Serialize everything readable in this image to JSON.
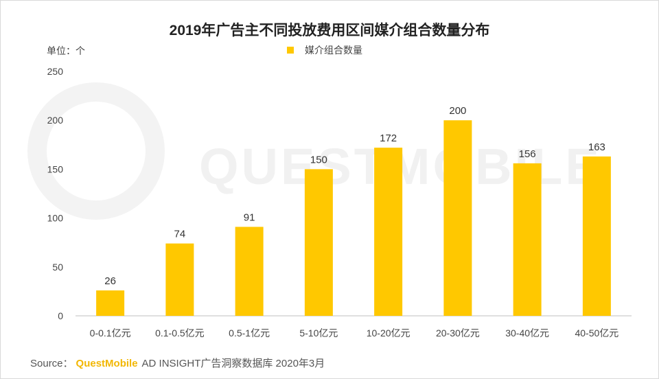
{
  "title": "2019年广告主不同投放费用区间媒介组合数量分布",
  "unit_label": "单位：个",
  "watermark": "QUESTMOBILE",
  "source": {
    "prefix": "Source：",
    "brand": "QuestMobile",
    "text": "AD INSIGHT广告洞察数据库 2020年3月"
  },
  "colors": {
    "bar": "#FFC800",
    "axis": "#bfbfbf"
  },
  "chart_data": {
    "type": "bar",
    "title": "2019年广告主不同投放费用区间媒介组合数量分布",
    "ylabel": "单位：个",
    "xlabel": "",
    "ylim": [
      0,
      250
    ],
    "yticks": [
      0,
      50,
      100,
      150,
      200,
      250
    ],
    "categories": [
      "0-0.1亿元",
      "0.1-0.5亿元",
      "0.5-1亿元",
      "5-10亿元",
      "10-20亿元",
      "20-30亿元",
      "30-40亿元",
      "40-50亿元"
    ],
    "series": [
      {
        "name": "媒介组合数量",
        "values": [
          26,
          74,
          91,
          150,
          172,
          200,
          156,
          163
        ]
      }
    ],
    "data_labels": true,
    "grid": false,
    "legend_position": "top"
  }
}
